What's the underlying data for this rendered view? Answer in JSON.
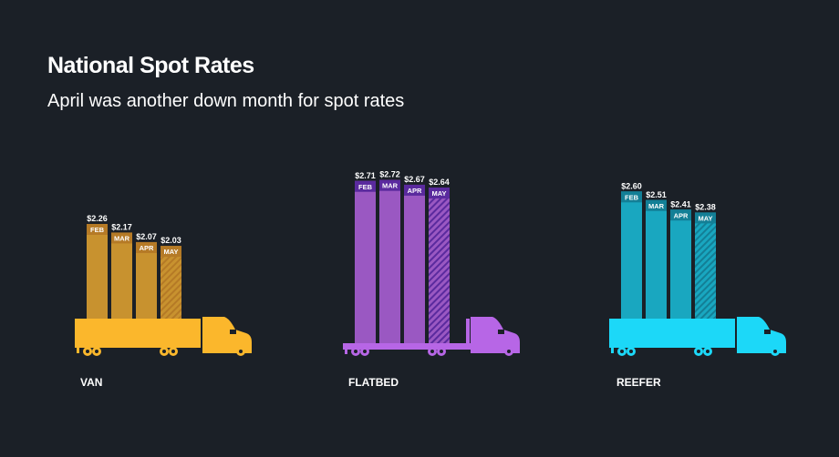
{
  "title": "National Spot Rates",
  "subtitle": "April was another down month for spot rates",
  "chart_data": [
    {
      "type": "bar",
      "name": "VAN",
      "categories": [
        "FEB",
        "MAR",
        "APR",
        "MAY"
      ],
      "values": [
        2.26,
        2.17,
        2.07,
        2.03
      ],
      "labels": [
        "$2.26",
        "$2.17",
        "$2.07",
        "$2.03"
      ],
      "colors": {
        "bar": "#c8922f",
        "strip": "#b57a26",
        "truck": "#fbb72c"
      },
      "hatched_last": true
    },
    {
      "type": "bar",
      "name": "FLATBED",
      "categories": [
        "FEB",
        "MAR",
        "APR",
        "MAY"
      ],
      "values": [
        2.71,
        2.72,
        2.67,
        2.64
      ],
      "labels": [
        "$2.71",
        "$2.72",
        "$2.67",
        "$2.64"
      ],
      "colors": {
        "bar": "#9a58c2",
        "strip": "#5a2a9e",
        "truck": "#b766e6"
      },
      "hatched_last": true
    },
    {
      "type": "bar",
      "name": "REEFER",
      "categories": [
        "FEB",
        "MAR",
        "APR",
        "MAY"
      ],
      "values": [
        2.6,
        2.51,
        2.41,
        2.38
      ],
      "labels": [
        "$2.60",
        "$2.51",
        "$2.41",
        "$2.38"
      ],
      "colors": {
        "bar": "#19a7c0",
        "strip": "#137f96",
        "truck": "#1cd8f8"
      },
      "hatched_last": true
    }
  ],
  "background": "#1b2027"
}
